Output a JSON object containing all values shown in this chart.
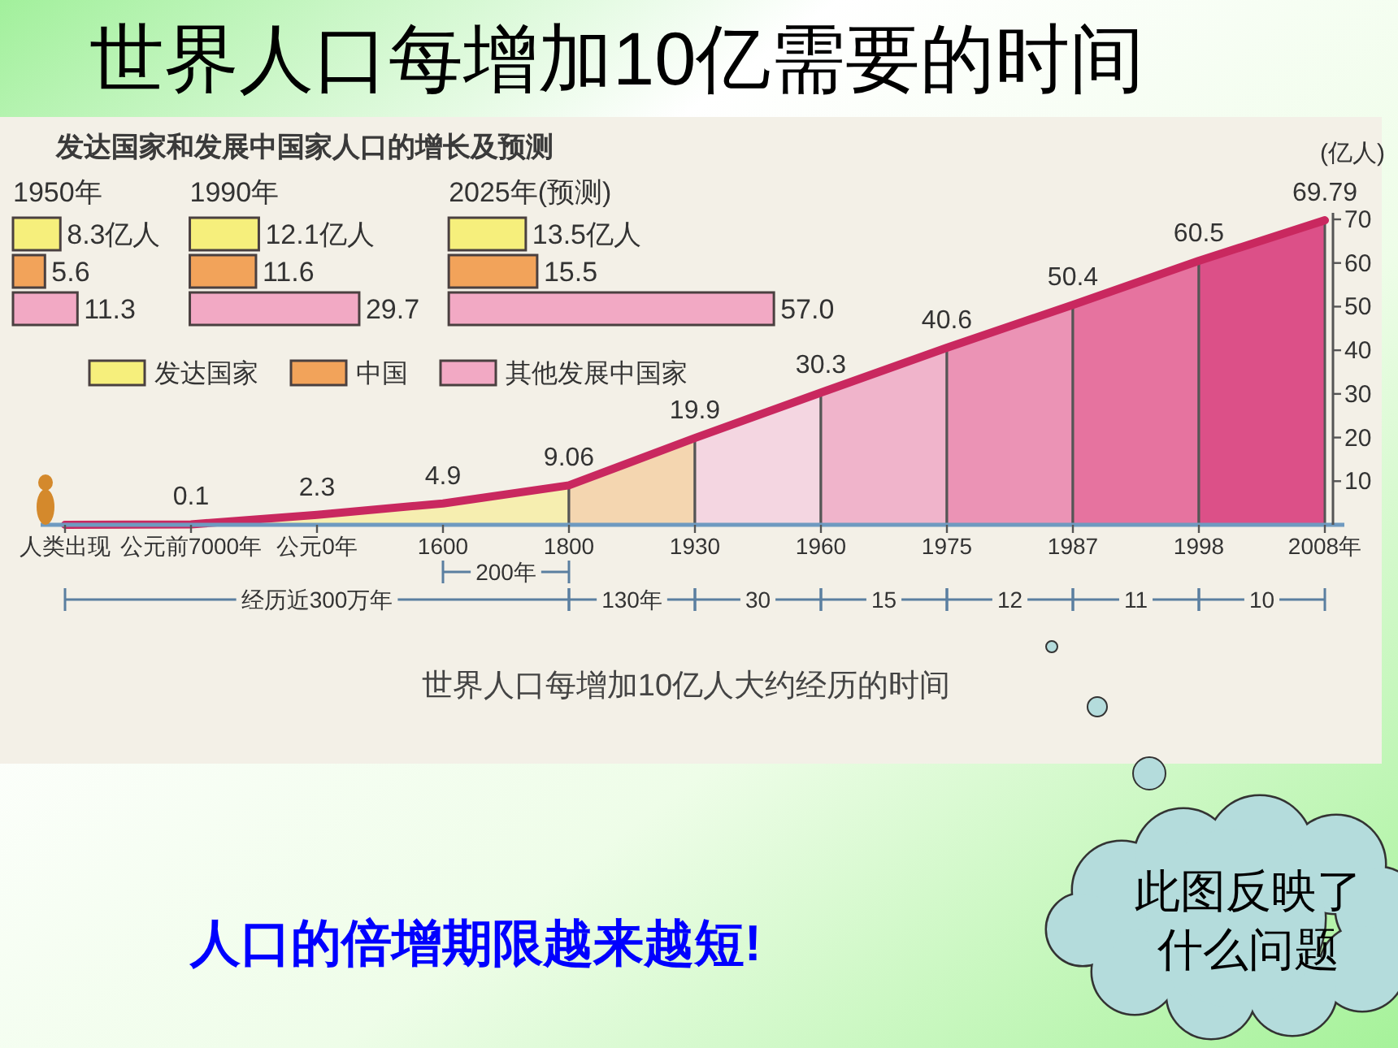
{
  "chart_data": [
    {
      "type": "bar",
      "orientation": "horizontal",
      "subtitle": "1950年",
      "categories": [
        null
      ],
      "legend": "bottom",
      "series": [
        {
          "name": "发达国家",
          "color": "#f6ef7c",
          "values": [
            8.3
          ],
          "value_labels": [
            "8.3亿人"
          ]
        },
        {
          "name": "中国",
          "color": "#f2a35a",
          "values": [
            5.6
          ],
          "value_labels": [
            "5.6"
          ]
        },
        {
          "name": "其他发展中国家",
          "color": "#f2a9c4",
          "values": [
            11.3
          ],
          "value_labels": [
            "11.3"
          ]
        }
      ]
    },
    {
      "type": "bar",
      "orientation": "horizontal",
      "title": "发达国家和发展中国家人口的增长及预测",
      "subtitle": "1990年",
      "categories": [
        null
      ],
      "series": [
        {
          "color": "#f6ef7c",
          "values": [
            12.1
          ],
          "value_labels": [
            "12.1亿人"
          ]
        },
        {
          "color": "#f2a35a",
          "values": [
            11.6
          ],
          "value_labels": [
            "11.6"
          ]
        },
        {
          "color": "#f2a9c4",
          "values": [
            29.7
          ],
          "value_labels": [
            "29.7"
          ]
        }
      ]
    },
    {
      "type": "bar",
      "orientation": "horizontal",
      "subtitle": "2025年(预测)",
      "categories": [
        null
      ],
      "series": [
        {
          "color": "#f6ef7c",
          "values": [
            13.5
          ],
          "value_labels": [
            "13.5亿人"
          ]
        },
        {
          "color": "#f2a35a",
          "values": [
            15.5
          ],
          "value_labels": [
            "15.5"
          ]
        },
        {
          "color": "#f2a9c4",
          "values": [
            57.0
          ],
          "value_labels": [
            "57.0"
          ]
        }
      ]
    },
    {
      "type": "line",
      "title": "世界人口每增加10亿需要的时间",
      "categories": [
        "人类出现",
        "公元前7000年",
        "公元0年",
        "1600",
        "1800",
        "1930",
        "1960",
        "1975",
        "1987",
        "1998",
        "2008年"
      ],
      "ylabel": "(亿人)",
      "ylim": [
        0,
        70
      ],
      "yticks": [
        10,
        20,
        30,
        40,
        50,
        60,
        70
      ],
      "series": [
        {
          "type": "area",
          "name": "经历近300万年",
          "color": "#f6eeb0",
          "values": [
            0,
            0.1,
            2.3,
            4.9,
            9.06,
            null,
            null,
            null,
            null,
            null,
            null
          ]
        },
        {
          "type": "area",
          "name": "130年",
          "color": "#f4d6b0",
          "values": [
            null,
            null,
            null,
            null,
            9.06,
            19.9,
            null,
            null,
            null,
            null,
            null
          ]
        },
        {
          "type": "area",
          "name": "30",
          "color": "#f4d6e1",
          "values": [
            null,
            null,
            null,
            null,
            null,
            19.9,
            30.3,
            null,
            null,
            null,
            null
          ]
        },
        {
          "type": "area",
          "name": "15",
          "color": "#f0b4cb",
          "values": [
            null,
            null,
            null,
            null,
            null,
            null,
            30.3,
            40.6,
            null,
            null,
            null
          ]
        },
        {
          "type": "area",
          "name": "12",
          "color": "#eb93b5",
          "values": [
            null,
            null,
            null,
            null,
            null,
            null,
            null,
            40.6,
            50.4,
            null,
            null
          ]
        },
        {
          "type": "area",
          "name": "11",
          "color": "#e6739f",
          "values": [
            null,
            null,
            null,
            null,
            null,
            null,
            null,
            null,
            50.4,
            60.5,
            null
          ]
        },
        {
          "type": "area",
          "name": "10",
          "color": "#dc5088",
          "values": [
            null,
            null,
            null,
            null,
            null,
            null,
            null,
            null,
            null,
            60.5,
            69.79
          ]
        },
        {
          "type": "line",
          "color": "#c9285f",
          "values": [
            0,
            0.1,
            2.3,
            4.9,
            9.06,
            19.9,
            30.3,
            40.6,
            50.4,
            60.5,
            69.79
          ],
          "value_labels": [
            null,
            "0.1",
            "2.3",
            "4.9",
            "9.06",
            "19.9",
            "30.3",
            "40.6",
            "50.4",
            "60.5",
            "69.79"
          ]
        }
      ],
      "annotations": [
        "200年",
        "世界人口每增加10亿人大约经历的时间",
        "人口的倍增期限越来越短!",
        "此图反映了什么问题"
      ]
    }
  ]
}
